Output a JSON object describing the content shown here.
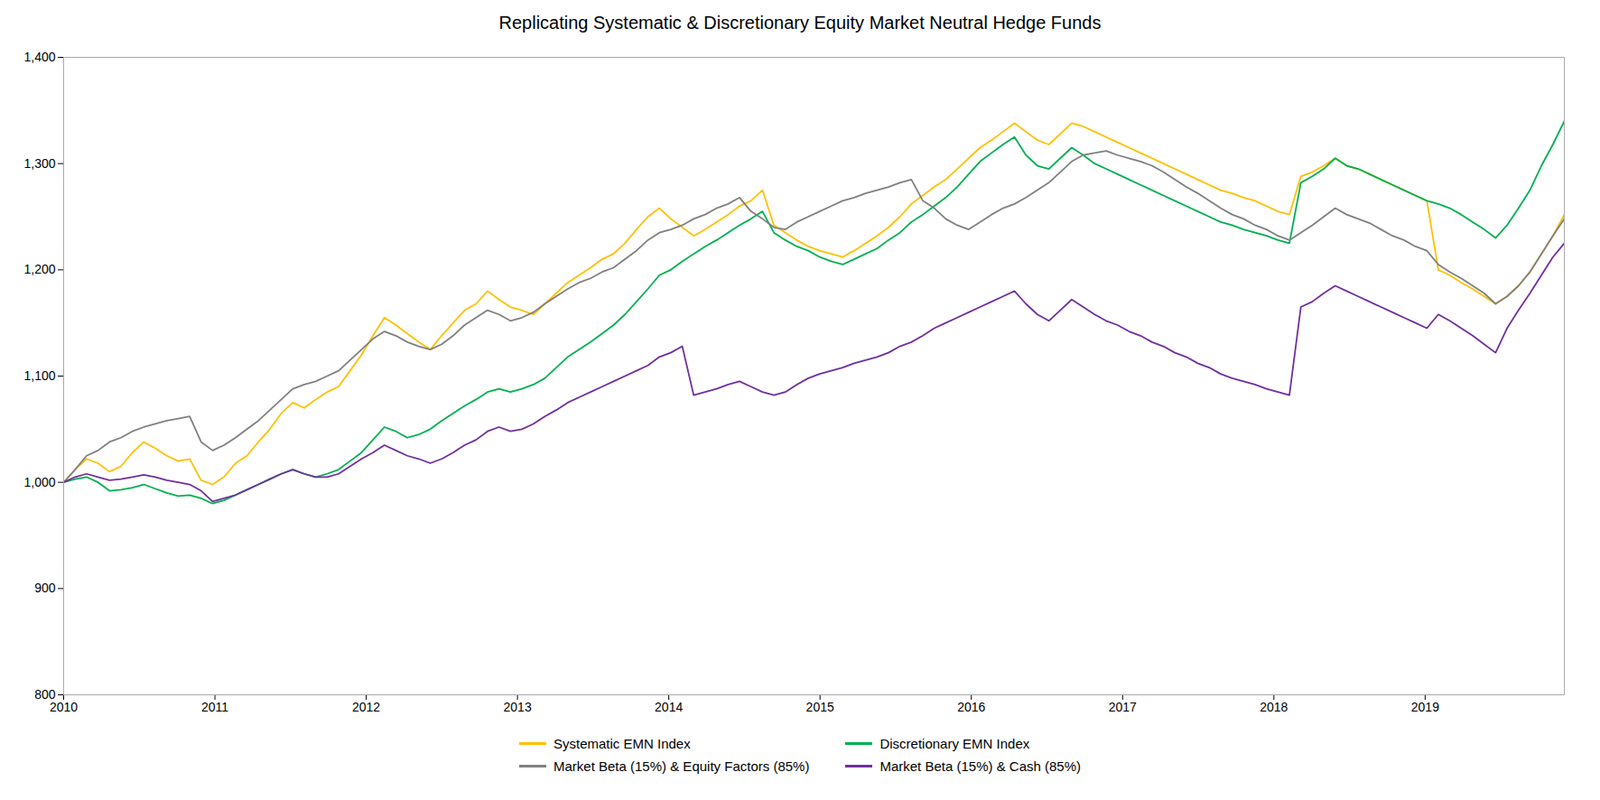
{
  "chart_data": {
    "type": "line",
    "title": "Replicating Systematic & Discretionary Equity Market Neutral Hedge Funds",
    "x": [
      2010.0,
      2010.0757,
      2010.1515,
      2010.2272,
      2010.3029,
      2010.3786,
      2010.4544,
      2010.5301,
      2010.6058,
      2010.6815,
      2010.7573,
      2010.833,
      2010.9087,
      2010.9844,
      2011.0602,
      2011.1359,
      2011.2116,
      2011.2873,
      2011.3631,
      2011.4388,
      2011.5145,
      2011.5902,
      2011.666,
      2011.7417,
      2011.8174,
      2011.8931,
      2011.9689,
      2012.0446,
      2012.1203,
      2012.196,
      2012.2718,
      2012.3475,
      2012.4232,
      2012.4989,
      2012.5747,
      2012.6504,
      2012.7261,
      2012.8018,
      2012.8776,
      2012.9533,
      2013.029,
      2013.1047,
      2013.1805,
      2013.2562,
      2013.3319,
      2013.4076,
      2013.4834,
      2013.5591,
      2013.6348,
      2013.7105,
      2013.7863,
      2013.862,
      2013.9377,
      2014.0134,
      2014.0892,
      2014.1649,
      2014.2406,
      2014.3163,
      2014.3921,
      2014.4678,
      2014.5435,
      2014.6192,
      2014.695,
      2014.7707,
      2014.8464,
      2014.9221,
      2014.9979,
      2015.0736,
      2015.1493,
      2015.225,
      2015.3008,
      2015.3765,
      2015.4522,
      2015.5279,
      2015.6037,
      2015.6794,
      2015.7551,
      2015.8308,
      2015.9066,
      2015.9823,
      2016.058,
      2016.1337,
      2016.2095,
      2016.2852,
      2016.3609,
      2016.4366,
      2016.5124,
      2016.5881,
      2016.6638,
      2016.7395,
      2016.8153,
      2016.891,
      2016.9667,
      2017.0424,
      2017.1182,
      2017.1939,
      2017.2696,
      2017.3453,
      2017.4211,
      2017.4968,
      2017.5725,
      2017.6482,
      2017.724,
      2017.7997,
      2017.8754,
      2017.9511,
      2018.0269,
      2018.1026,
      2018.1783,
      2018.254,
      2018.3298,
      2018.4055,
      2018.4812,
      2018.5569,
      2018.6327,
      2018.7084,
      2018.7841,
      2018.8598,
      2018.9356,
      2019.0113,
      2019.087,
      2019.1627,
      2019.2385,
      2019.3142,
      2019.3899,
      2019.4656,
      2019.5414,
      2019.6171,
      2019.6928,
      2019.7685,
      2019.8443,
      2019.92
    ],
    "xlim": [
      2010.0,
      2019.92
    ],
    "xticks": [
      2010,
      2011,
      2012,
      2013,
      2014,
      2015,
      2016,
      2017,
      2018,
      2019
    ],
    "ylim": [
      800,
      1400
    ],
    "yticks": [
      800,
      900,
      {
        "value": 1000,
        "label": "1,000"
      },
      {
        "value": 1100,
        "label": "1,100"
      },
      {
        "value": 1200,
        "label": "1,200"
      },
      {
        "value": 1300,
        "label": "1,300"
      },
      {
        "value": 1400,
        "label": "1,400"
      }
    ],
    "grid": false,
    "legend": "bottom",
    "series": [
      {
        "name": "Systematic EMN Index",
        "color": "#FFC000",
        "values": [
          1000,
          1012,
          1022,
          1018,
          1010,
          1015,
          1028,
          1038,
          1032,
          1025,
          1020,
          1022,
          1002,
          998,
          1005,
          1018,
          1025,
          1038,
          1050,
          1065,
          1075,
          1070,
          1078,
          1085,
          1090,
          1105,
          1120,
          1138,
          1155,
          1148,
          1140,
          1132,
          1125,
          1138,
          1150,
          1162,
          1168,
          1180,
          1172,
          1165,
          1162,
          1158,
          1168,
          1178,
          1188,
          1195,
          1202,
          1210,
          1215,
          1225,
          1238,
          1250,
          1258,
          1248,
          1240,
          1232,
          1238,
          1245,
          1252,
          1260,
          1265,
          1275,
          1242,
          1235,
          1228,
          1222,
          1218,
          1215,
          1212,
          1218,
          1225,
          1232,
          1240,
          1250,
          1262,
          1270,
          1278,
          1285,
          1295,
          1305,
          1315,
          1322,
          1330,
          1338,
          1330,
          1322,
          1318,
          1328,
          1338,
          1335,
          1330,
          1325,
          1320,
          1315,
          1310,
          1305,
          1300,
          1295,
          1290,
          1285,
          1280,
          1275,
          1272,
          1268,
          1265,
          1260,
          1255,
          1252,
          1288,
          1292,
          1298,
          1305,
          1298,
          1295,
          1290,
          1285,
          1280,
          1275,
          1270,
          1265,
          1200,
          1195,
          1188,
          1182,
          1175,
          1168,
          1175,
          1185,
          1198,
          1215,
          1232,
          1252
        ]
      },
      {
        "name": "Discretionary EMN Index",
        "color": "#00B050",
        "values": [
          1000,
          1003,
          1005,
          1000,
          992,
          993,
          995,
          998,
          994,
          990,
          987,
          988,
          985,
          980,
          983,
          988,
          993,
          998,
          1003,
          1008,
          1012,
          1008,
          1005,
          1008,
          1012,
          1020,
          1028,
          1040,
          1052,
          1048,
          1042,
          1045,
          1050,
          1058,
          1065,
          1072,
          1078,
          1085,
          1088,
          1085,
          1088,
          1092,
          1098,
          1108,
          1118,
          1125,
          1132,
          1140,
          1148,
          1158,
          1170,
          1182,
          1195,
          1200,
          1208,
          1215,
          1222,
          1228,
          1235,
          1242,
          1248,
          1255,
          1235,
          1228,
          1222,
          1218,
          1212,
          1208,
          1205,
          1210,
          1215,
          1220,
          1228,
          1235,
          1245,
          1252,
          1260,
          1268,
          1278,
          1290,
          1302,
          1310,
          1318,
          1325,
          1308,
          1298,
          1295,
          1305,
          1315,
          1308,
          1300,
          1295,
          1290,
          1285,
          1280,
          1275,
          1270,
          1265,
          1260,
          1255,
          1250,
          1245,
          1242,
          1238,
          1235,
          1232,
          1228,
          1225,
          1282,
          1288,
          1295,
          1305,
          1298,
          1295,
          1290,
          1285,
          1280,
          1275,
          1270,
          1265,
          1262,
          1258,
          1252,
          1245,
          1238,
          1230,
          1242,
          1258,
          1275,
          1298,
          1318,
          1340
        ]
      },
      {
        "name": "Market Beta (15%) & Equity Factors (85%)",
        "color": "#808080",
        "values": [
          1000,
          1012,
          1025,
          1030,
          1038,
          1042,
          1048,
          1052,
          1055,
          1058,
          1060,
          1062,
          1038,
          1030,
          1035,
          1042,
          1050,
          1058,
          1068,
          1078,
          1088,
          1092,
          1095,
          1100,
          1105,
          1115,
          1125,
          1135,
          1142,
          1138,
          1132,
          1128,
          1125,
          1130,
          1138,
          1148,
          1155,
          1162,
          1158,
          1152,
          1155,
          1160,
          1168,
          1175,
          1182,
          1188,
          1192,
          1198,
          1202,
          1210,
          1218,
          1228,
          1235,
          1238,
          1242,
          1248,
          1252,
          1258,
          1262,
          1268,
          1255,
          1248,
          1240,
          1238,
          1245,
          1250,
          1255,
          1260,
          1265,
          1268,
          1272,
          1275,
          1278,
          1282,
          1285,
          1265,
          1258,
          1248,
          1242,
          1238,
          1245,
          1252,
          1258,
          1262,
          1268,
          1275,
          1282,
          1292,
          1302,
          1308,
          1310,
          1312,
          1308,
          1305,
          1302,
          1298,
          1292,
          1285,
          1278,
          1272,
          1265,
          1258,
          1252,
          1248,
          1242,
          1238,
          1232,
          1228,
          1235,
          1242,
          1250,
          1258,
          1252,
          1248,
          1244,
          1238,
          1232,
          1228,
          1222,
          1218,
          1205,
          1198,
          1192,
          1185,
          1178,
          1168,
          1175,
          1185,
          1198,
          1215,
          1232,
          1248
        ]
      },
      {
        "name": "Market Beta (15%) & Cash (85%)",
        "color": "#7030A0",
        "values": [
          1000,
          1005,
          1008,
          1005,
          1002,
          1003,
          1005,
          1007,
          1005,
          1002,
          1000,
          998,
          992,
          982,
          985,
          988,
          993,
          998,
          1003,
          1008,
          1012,
          1008,
          1005,
          1005,
          1008,
          1015,
          1022,
          1028,
          1035,
          1030,
          1025,
          1022,
          1018,
          1022,
          1028,
          1035,
          1040,
          1048,
          1052,
          1048,
          1050,
          1055,
          1062,
          1068,
          1075,
          1080,
          1085,
          1090,
          1095,
          1100,
          1105,
          1110,
          1118,
          1122,
          1128,
          1082,
          1085,
          1088,
          1092,
          1095,
          1090,
          1085,
          1082,
          1085,
          1092,
          1098,
          1102,
          1105,
          1108,
          1112,
          1115,
          1118,
          1122,
          1128,
          1132,
          1138,
          1145,
          1150,
          1155,
          1160,
          1165,
          1170,
          1175,
          1180,
          1168,
          1158,
          1152,
          1162,
          1172,
          1165,
          1158,
          1152,
          1148,
          1142,
          1138,
          1132,
          1128,
          1122,
          1118,
          1112,
          1108,
          1102,
          1098,
          1095,
          1092,
          1088,
          1085,
          1082,
          1165,
          1170,
          1178,
          1185,
          1180,
          1175,
          1170,
          1165,
          1160,
          1155,
          1150,
          1145,
          1158,
          1152,
          1145,
          1138,
          1130,
          1122,
          1145,
          1162,
          1178,
          1195,
          1212,
          1225
        ]
      }
    ]
  }
}
